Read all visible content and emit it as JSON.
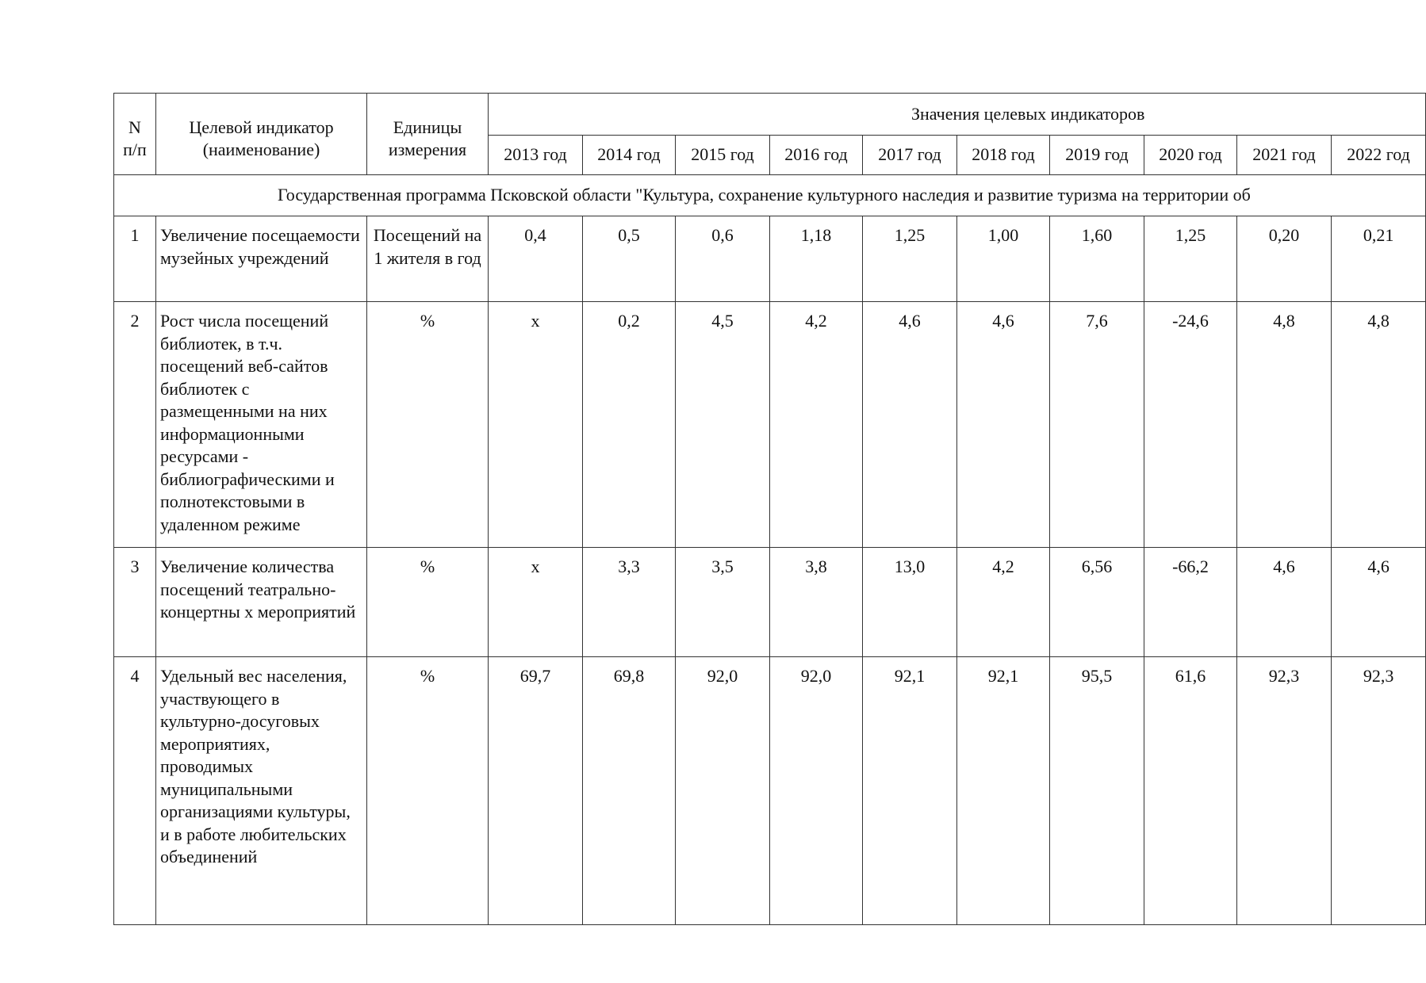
{
  "header": {
    "num": [
      "N",
      "п/п"
    ],
    "name": [
      "Целевой индикатор",
      "(наименование)"
    ],
    "unit": [
      "Единицы",
      "измерения"
    ],
    "values_title": "Значения целевых индикаторов",
    "years": [
      "2013 год",
      "2014 год",
      "2015 год",
      "2016 год",
      "2017 год",
      "2018 год",
      "2019 год",
      "2020 год",
      "2021 год",
      "2022 год"
    ]
  },
  "program_title": "Государственная программа Псковской области \"Культура, сохранение культурного наследия и развитие туризма на территории об",
  "rows": [
    {
      "n": "1",
      "name": "Увеличение посещаемости музейных учреждений",
      "unit": "Посещений на 1 жителя в год",
      "values": [
        "0,4",
        "0,5",
        "0,6",
        "1,18",
        "1,25",
        "1,00",
        "1,60",
        "1,25",
        "0,20",
        "0,21"
      ]
    },
    {
      "n": "2",
      "name": "Рост числа посещений библиотек, в т.ч. посещений веб-сайтов библиотек с размещенными на них информационными ресурсами - библиографическими и полнотекстовыми в удаленном режиме",
      "unit": "%",
      "values": [
        "x",
        "0,2",
        "4,5",
        "4,2",
        "4,6",
        "4,6",
        "7,6",
        "-24,6",
        "4,8",
        "4,8"
      ]
    },
    {
      "n": "3",
      "name": "Увеличение количества посещений театрально-концертны х мероприятий",
      "unit": "%",
      "values": [
        "x",
        "3,3",
        "3,5",
        "3,8",
        "13,0",
        "4,2",
        "6,56",
        "-66,2",
        "4,6",
        "4,6"
      ]
    },
    {
      "n": "4",
      "name": "Удельный вес населения, участвующего в культурно-досуговых мероприятиях, проводимых муниципальными организациями культуры, и в работе любительских объединений",
      "unit": "%",
      "values": [
        "69,7",
        "69,8",
        "92,0",
        "92,0",
        "92,1",
        "92,1",
        "95,5",
        "61,6",
        "92,3",
        "92,3"
      ]
    }
  ]
}
